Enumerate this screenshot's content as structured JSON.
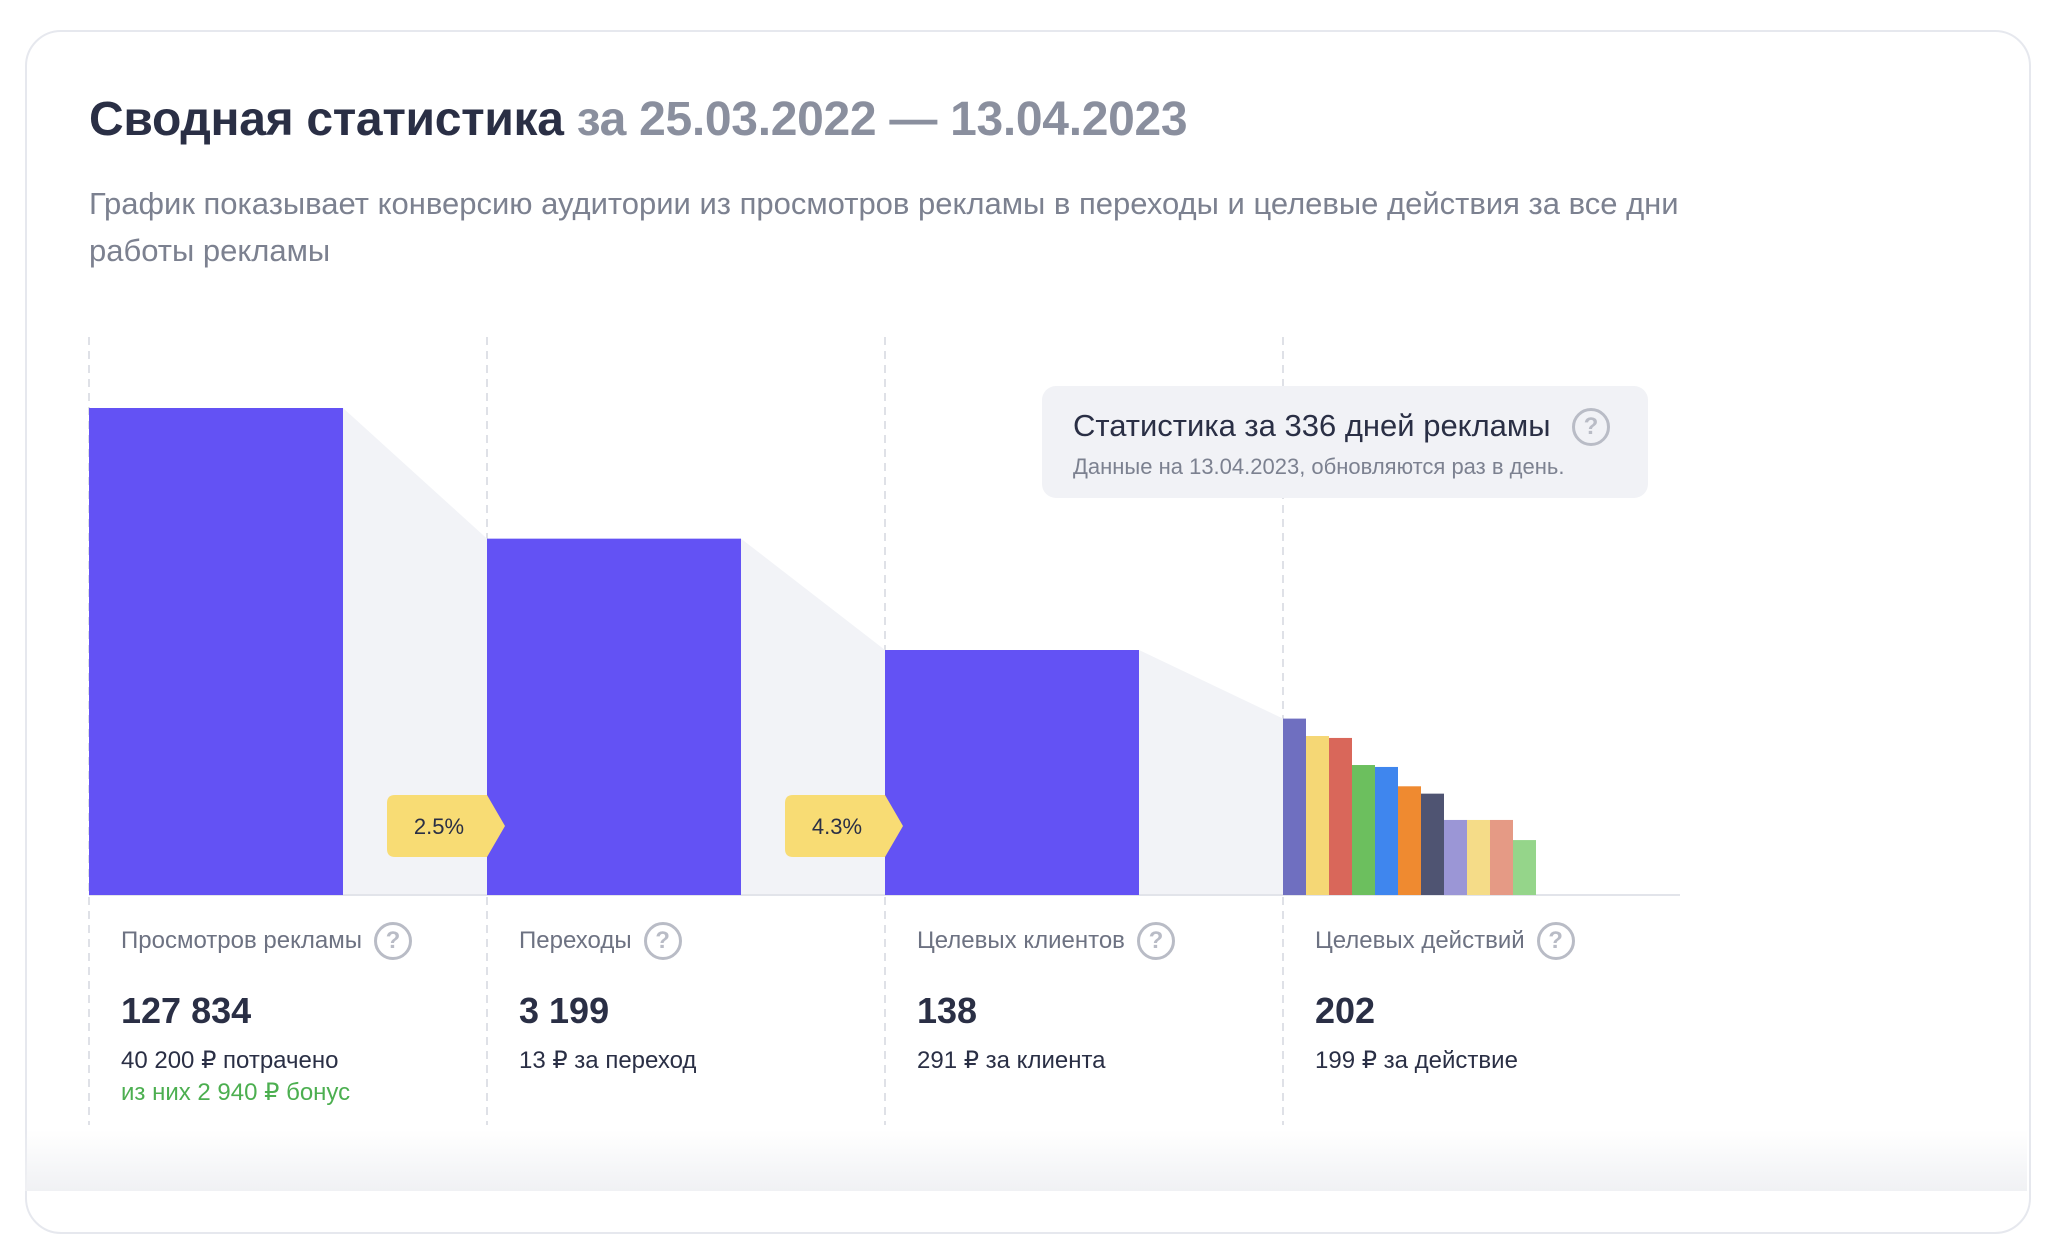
{
  "header": {
    "title": "Сводная статистика",
    "period": "за 25.03.2022 — 13.04.2023",
    "subtitle": "График показывает конверсию аудитории из просмотров рекламы в переходы и целевые действия за все дни работы рекламы"
  },
  "tooltip": {
    "title": "Статистика за 336 дней рекламы",
    "note": "Данные на 13.04.2023, обновляются раз в день."
  },
  "metrics": [
    {
      "label": "Просмотров рекламы",
      "value": "127 834",
      "sub": "40 200 ₽ потрачено",
      "bonus": "из них 2 940 ₽ бонус"
    },
    {
      "label": "Переходы",
      "value": "3 199",
      "sub": "13 ₽ за переход"
    },
    {
      "label": "Целевых клиентов",
      "value": "138",
      "sub": "291 ₽ за клиента"
    },
    {
      "label": "Целевых действий",
      "value": "202",
      "sub": "199 ₽ за действие"
    }
  ],
  "chart_data": {
    "type": "bar",
    "categories": [
      "Просмотров рекламы",
      "Переходы",
      "Целевых клиентов",
      "Целевых действий"
    ],
    "values": [
      127834,
      3199,
      138,
      202
    ],
    "conversion_labels": [
      "2.5%",
      "4.3%"
    ],
    "breakdown_relative_heights": [
      0.456,
      0.411,
      0.406,
      0.336,
      0.331,
      0.281,
      0.262,
      0.194,
      0.194,
      0.194,
      0.142
    ],
    "colors": {
      "main_bar": "#6352f4",
      "funnel_fill": "#f2f3f7",
      "badge": "#f8dc74",
      "breakdown": [
        "#6f6fc0",
        "#f5d775",
        "#d9675a",
        "#6cbf5e",
        "#3f86ee",
        "#ef8a30",
        "#4f5472",
        "#9b96d6",
        "#f5dc88",
        "#e59a85",
        "#95d58a"
      ]
    }
  }
}
